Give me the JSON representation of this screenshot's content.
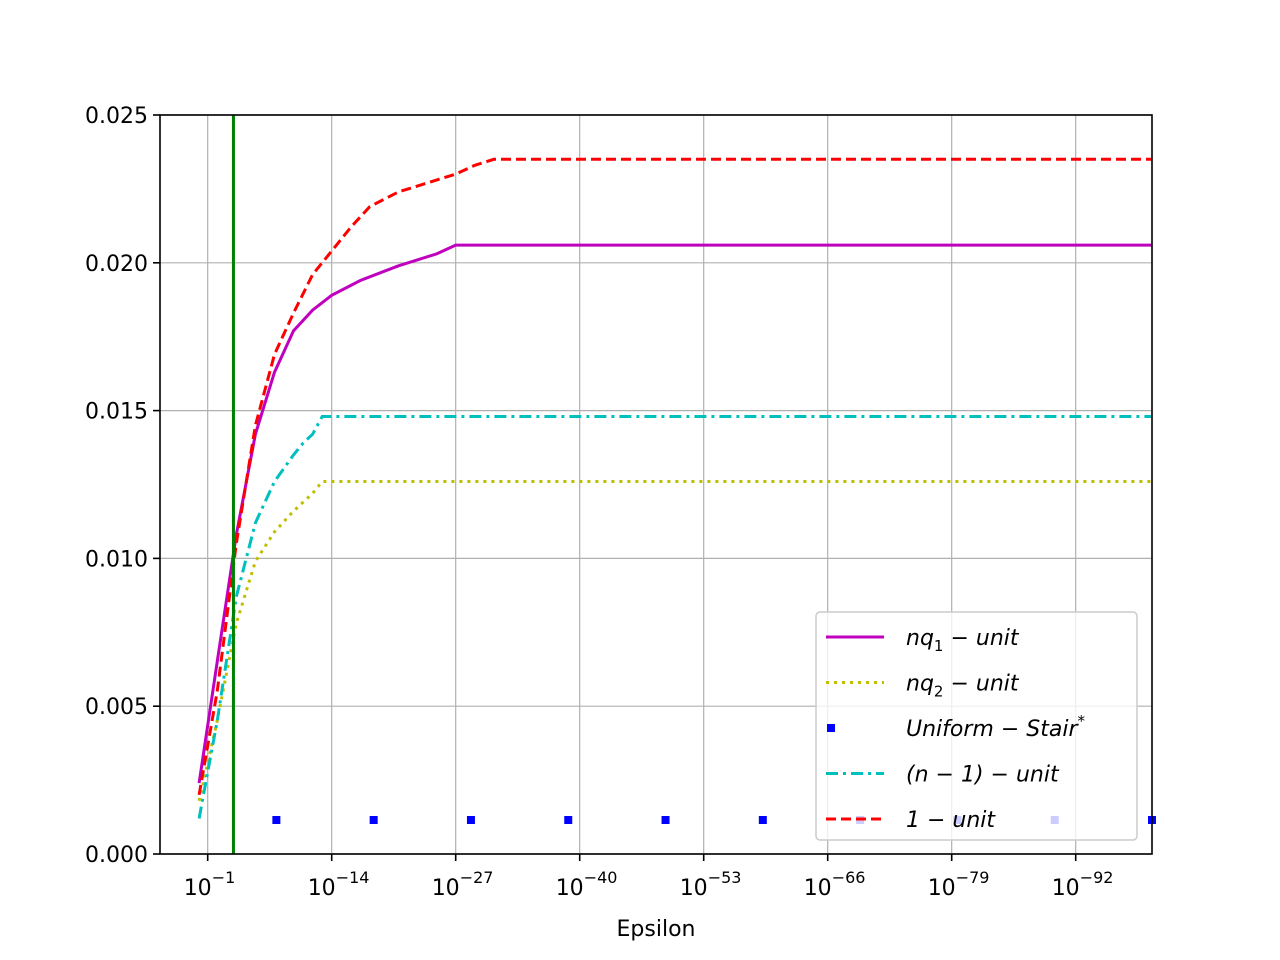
{
  "chart_data": {
    "type": "line",
    "title": "",
    "xlabel": "Epsilon",
    "ylabel": "",
    "x_scale": "log-reversed",
    "x_tick_exponents": [
      -1,
      -14,
      -27,
      -40,
      -53,
      -66,
      -79,
      -92
    ],
    "x_tick_labels": [
      {
        "base": "10",
        "exp": "−1"
      },
      {
        "base": "10",
        "exp": "−14"
      },
      {
        "base": "10",
        "exp": "−27"
      },
      {
        "base": "10",
        "exp": "−40"
      },
      {
        "base": "10",
        "exp": "−53"
      },
      {
        "base": "10",
        "exp": "−66"
      },
      {
        "base": "10",
        "exp": "−79"
      },
      {
        "base": "10",
        "exp": "−92"
      }
    ],
    "xlim_exponent": [
      4,
      -100
    ],
    "ylim": [
      0,
      0.025
    ],
    "y_ticks": [
      0.0,
      0.005,
      0.01,
      0.015,
      0.02,
      0.025
    ],
    "y_tick_labels": [
      "0.000",
      "0.005",
      "0.010",
      "0.015",
      "0.020",
      "0.025"
    ],
    "grid": true,
    "legend_position": "lower-right",
    "vertical_line": {
      "x_exponent": -3.7,
      "color": "#008000"
    },
    "series": [
      {
        "name": "nq₁ − unit",
        "legend": {
          "main": "nq",
          "sub": "1",
          "rest": " − unit",
          "sup": ""
        },
        "color": "#bf00bf",
        "style": "solid",
        "marker": "none",
        "x_exponent": [
          -0.1,
          -2,
          -4,
          -6,
          -8,
          -10,
          -12,
          -14,
          -17,
          -21,
          -25,
          -27,
          -28.5,
          -33,
          -50,
          -80,
          -100
        ],
        "y": [
          0.0024,
          0.0065,
          0.0108,
          0.0142,
          0.0163,
          0.0177,
          0.0184,
          0.0189,
          0.0194,
          0.0199,
          0.0203,
          0.0206,
          0.0206,
          0.0206,
          0.0206,
          0.0206,
          0.0206
        ]
      },
      {
        "name": "nq₂ − unit",
        "legend": {
          "main": "nq",
          "sub": "2",
          "rest": " − unit",
          "sup": ""
        },
        "color": "#bfbf00",
        "style": "dotted",
        "marker": "none",
        "x_exponent": [
          -0.1,
          -2,
          -4,
          -6,
          -8,
          -10,
          -12,
          -13,
          -20,
          -50,
          -100
        ],
        "y": [
          0.0018,
          0.0045,
          0.0078,
          0.0099,
          0.0109,
          0.0116,
          0.0122,
          0.0126,
          0.0126,
          0.0126,
          0.0126
        ]
      },
      {
        "name": "Uniform − Stair*",
        "legend": {
          "main": "Uniform − Stair",
          "sub": "",
          "rest": "",
          "sup": "*"
        },
        "color": "#0000ff",
        "style": "none",
        "marker": "square",
        "x_exponent": [
          -8.2,
          -18.4,
          -28.6,
          -38.8,
          -49,
          -59.2,
          -69.4,
          -79.6,
          -89.8,
          -100
        ],
        "y": [
          0.00115,
          0.00115,
          0.00115,
          0.00115,
          0.00115,
          0.00115,
          0.00115,
          0.00115,
          0.00115,
          0.00115
        ]
      },
      {
        "name": "(n − 1) − unit",
        "legend": {
          "main": "(n − 1) − unit",
          "sub": "",
          "rest": "",
          "sup": ""
        },
        "color": "#00bfbf",
        "style": "dashdot",
        "marker": "none",
        "x_exponent": [
          -0.1,
          -2,
          -4,
          -6,
          -8,
          -10,
          -11,
          -12,
          -13,
          -14,
          -20,
          -50,
          -100
        ],
        "y": [
          0.0012,
          0.0045,
          0.0087,
          0.0112,
          0.0126,
          0.0135,
          0.0139,
          0.0142,
          0.0148,
          0.0148,
          0.0148,
          0.0148,
          0.0148
        ]
      },
      {
        "name": "1 − unit",
        "legend": {
          "main": "1 − unit",
          "sub": "",
          "rest": "",
          "sup": ""
        },
        "color": "#ff0000",
        "style": "dashed",
        "marker": "none",
        "x_exponent": [
          -0.1,
          -2,
          -4,
          -6,
          -8,
          -10,
          -12,
          -14,
          -16,
          -18,
          -21,
          -24,
          -27,
          -29,
          -31,
          -33,
          -50,
          -100
        ],
        "y": [
          0.002,
          0.0055,
          0.0105,
          0.0145,
          0.0169,
          0.0183,
          0.0196,
          0.0204,
          0.0212,
          0.0219,
          0.0224,
          0.0227,
          0.023,
          0.0233,
          0.0235,
          0.0235,
          0.0235,
          0.0235
        ]
      }
    ]
  }
}
